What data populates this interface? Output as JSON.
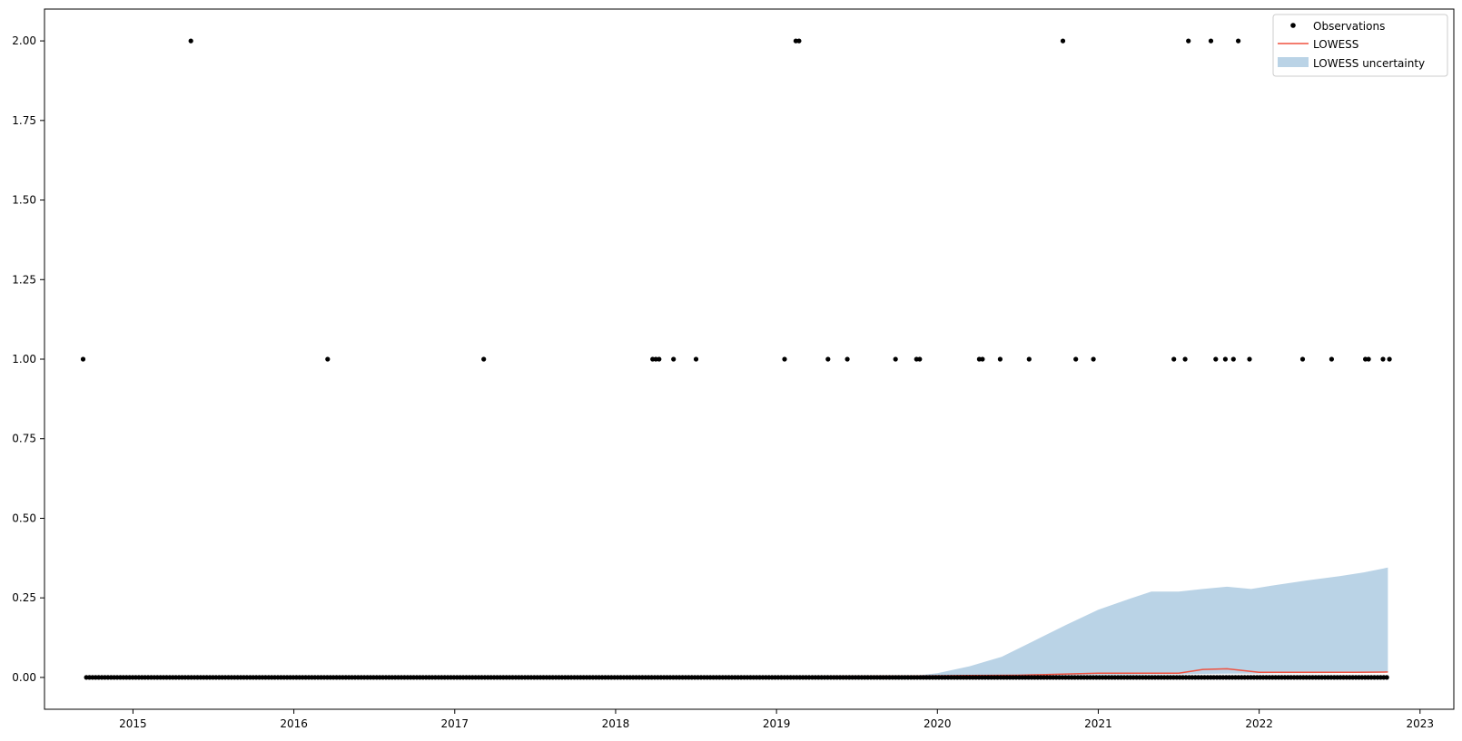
{
  "chart_data": {
    "type": "scatter",
    "title": "",
    "xlabel": "",
    "ylabel": "",
    "xlim": [
      2014.45,
      2023.21
    ],
    "ylim": [
      -0.1,
      2.1
    ],
    "x_ticks": [
      2015,
      2016,
      2017,
      2018,
      2019,
      2020,
      2021,
      2022,
      2023
    ],
    "x_tick_labels": [
      "2015",
      "2016",
      "2017",
      "2018",
      "2019",
      "2020",
      "2021",
      "2022",
      "2023"
    ],
    "y_ticks": [
      0,
      0.25,
      0.5,
      0.75,
      1.0,
      1.25,
      1.5,
      1.75,
      2.0
    ],
    "y_tick_labels": [
      "0.00",
      "0.25",
      "0.50",
      "0.75",
      "1.00",
      "1.25",
      "1.50",
      "1.75",
      "2.00"
    ],
    "legend": {
      "position": "top-right",
      "entries": [
        "Observations",
        "LOWESS",
        "LOWESS uncertainty"
      ]
    },
    "colors": {
      "observations": "#000000",
      "lowess": "#f0513f",
      "uncertainty": "#a9c8e0"
    },
    "observations": {
      "zero_range": [
        2014.71,
        2022.8
      ],
      "zero_step": 0.0192,
      "nonzero": [
        {
          "x": 2014.69,
          "y": 1
        },
        {
          "x": 2015.36,
          "y": 2
        },
        {
          "x": 2016.21,
          "y": 1
        },
        {
          "x": 2017.18,
          "y": 1
        },
        {
          "x": 2018.23,
          "y": 1
        },
        {
          "x": 2018.25,
          "y": 1
        },
        {
          "x": 2018.27,
          "y": 1
        },
        {
          "x": 2018.36,
          "y": 1
        },
        {
          "x": 2018.5,
          "y": 1
        },
        {
          "x": 2019.05,
          "y": 1
        },
        {
          "x": 2019.12,
          "y": 2
        },
        {
          "x": 2019.14,
          "y": 2
        },
        {
          "x": 2019.32,
          "y": 1
        },
        {
          "x": 2019.44,
          "y": 1
        },
        {
          "x": 2019.74,
          "y": 1
        },
        {
          "x": 2019.87,
          "y": 1
        },
        {
          "x": 2019.89,
          "y": 1
        },
        {
          "x": 2020.26,
          "y": 1
        },
        {
          "x": 2020.28,
          "y": 1
        },
        {
          "x": 2020.39,
          "y": 1
        },
        {
          "x": 2020.57,
          "y": 1
        },
        {
          "x": 2020.78,
          "y": 2
        },
        {
          "x": 2020.86,
          "y": 1
        },
        {
          "x": 2020.97,
          "y": 1
        },
        {
          "x": 2021.47,
          "y": 1
        },
        {
          "x": 2021.54,
          "y": 1
        },
        {
          "x": 2021.56,
          "y": 2
        },
        {
          "x": 2021.7,
          "y": 2
        },
        {
          "x": 2021.73,
          "y": 1
        },
        {
          "x": 2021.79,
          "y": 1
        },
        {
          "x": 2021.84,
          "y": 1
        },
        {
          "x": 2021.87,
          "y": 2
        },
        {
          "x": 2021.94,
          "y": 1
        },
        {
          "x": 2022.27,
          "y": 1
        },
        {
          "x": 2022.45,
          "y": 1
        },
        {
          "x": 2022.66,
          "y": 1
        },
        {
          "x": 2022.68,
          "y": 1
        },
        {
          "x": 2022.77,
          "y": 1
        },
        {
          "x": 2022.81,
          "y": 1
        }
      ]
    },
    "lowess": {
      "x": [
        2014.7,
        2015.0,
        2015.5,
        2016.0,
        2016.5,
        2017.0,
        2017.5,
        2018.0,
        2018.5,
        2019.0,
        2019.5,
        2019.9,
        2020.2,
        2020.5,
        2020.75,
        2021.0,
        2021.25,
        2021.5,
        2021.65,
        2021.8,
        2022.0,
        2022.2,
        2022.4,
        2022.6,
        2022.8
      ],
      "y": [
        0.0,
        0.0,
        0.0,
        0.0,
        0.0,
        0.0,
        0.0,
        0.0,
        0.002,
        0.003,
        0.004,
        0.005,
        0.006,
        0.007,
        0.01,
        0.013,
        0.013,
        0.013,
        0.025,
        0.027,
        0.016,
        0.016,
        0.016,
        0.016,
        0.017
      ]
    },
    "uncertainty": {
      "x": [
        2019.85,
        2020.0,
        2020.2,
        2020.4,
        2020.6,
        2020.8,
        2021.0,
        2021.2,
        2021.33,
        2021.5,
        2021.65,
        2021.8,
        2021.95,
        2022.1,
        2022.3,
        2022.5,
        2022.65,
        2022.8
      ],
      "lower": [
        0.005,
        0.005,
        0.006,
        0.006,
        0.007,
        0.008,
        0.009,
        0.009,
        0.01,
        0.01,
        0.011,
        0.012,
        0.012,
        0.013,
        0.013,
        0.014,
        0.014,
        0.015
      ],
      "upper": [
        0.005,
        0.013,
        0.035,
        0.065,
        0.115,
        0.165,
        0.213,
        0.248,
        0.27,
        0.27,
        0.278,
        0.285,
        0.278,
        0.29,
        0.305,
        0.318,
        0.33,
        0.345
      ]
    }
  }
}
